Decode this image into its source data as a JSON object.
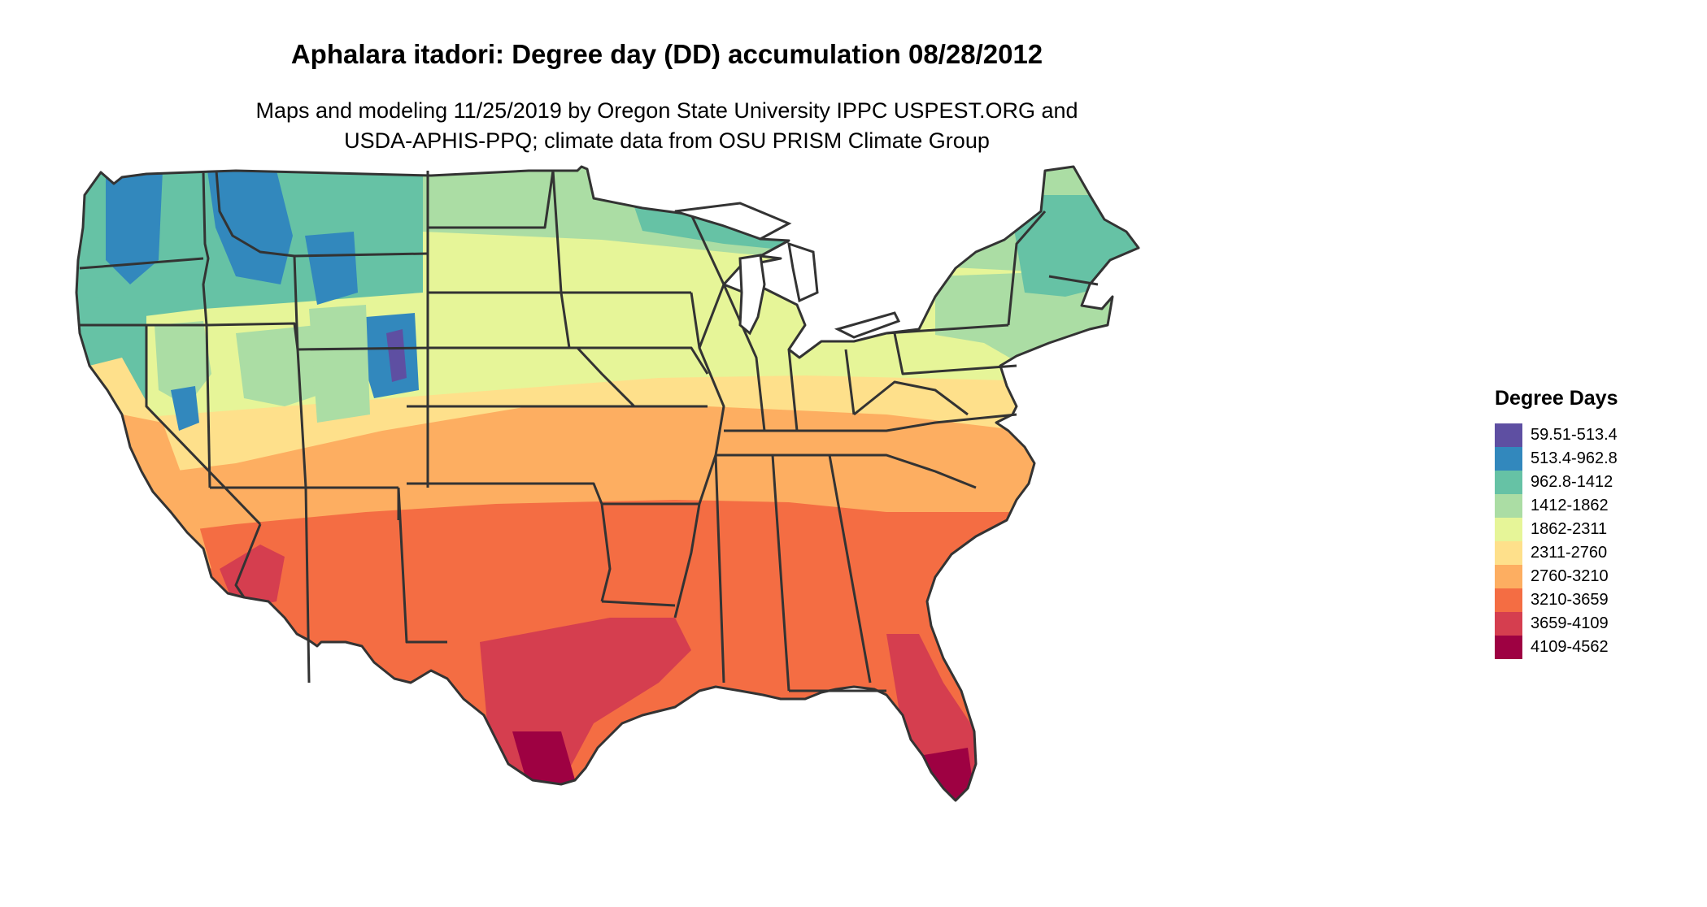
{
  "header": {
    "title": "Aphalara itadori: Degree day (DD) accumulation 08/28/2012",
    "subtitle_line1": "Maps and modeling 11/25/2019 by Oregon State University IPPC USPEST.ORG and",
    "subtitle_line2": "USDA-APHIS-PPQ; climate data from OSU PRISM Climate Group"
  },
  "legend": {
    "title": "Degree Days",
    "items": [
      {
        "label": "59.51-513.4",
        "color": "#5e4fa2"
      },
      {
        "label": "513.4-962.8",
        "color": "#3288bd"
      },
      {
        "label": "962.8-1412",
        "color": "#66c2a5"
      },
      {
        "label": "1412-1862",
        "color": "#abdda4"
      },
      {
        "label": "1862-2311",
        "color": "#e6f598"
      },
      {
        "label": "2311-2760",
        "color": "#fee08b"
      },
      {
        "label": "2760-3210",
        "color": "#fdae61"
      },
      {
        "label": "3210-3659",
        "color": "#f46d43"
      },
      {
        "label": "3659-4109",
        "color": "#d53e4f"
      },
      {
        "label": "4109-4562",
        "color": "#9e0142"
      }
    ]
  },
  "map": {
    "region": "contiguous United States",
    "border_color": "#333333"
  }
}
